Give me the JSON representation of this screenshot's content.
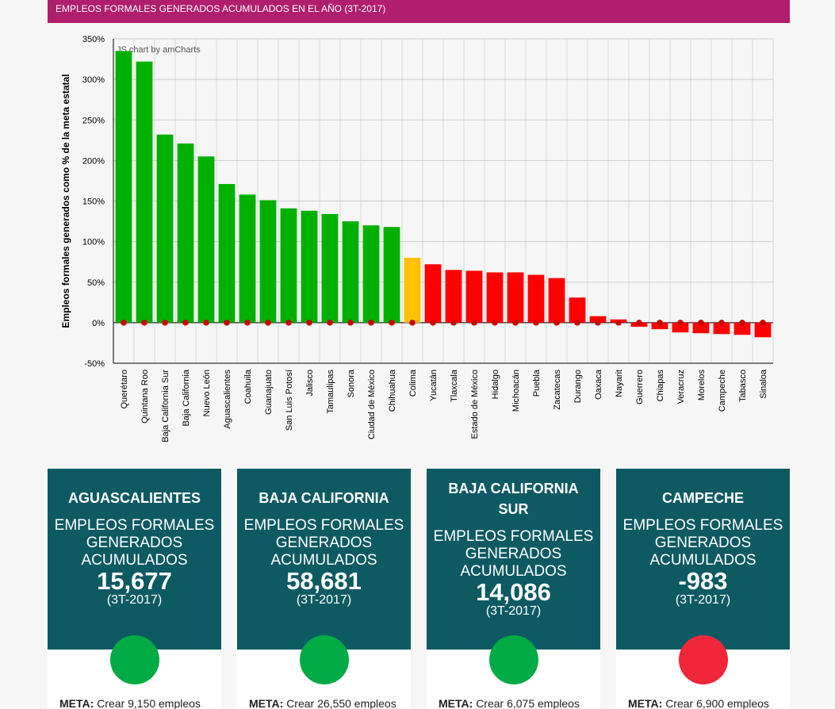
{
  "header": {
    "title": "EMPLEOS FORMALES GENERADOS ACUMULADOS EN EL AÑO (3T-2017)"
  },
  "chart_data": {
    "type": "bar",
    "title": "EMPLEOS FORMALES GENERADOS ACUMULADOS EN EL AÑO (3T-2017)",
    "ylabel": "Empleos formales generados como % de la meta estatal",
    "xlabel": "",
    "ylim": [
      -50,
      350
    ],
    "yticks": [
      -50,
      0,
      50,
      100,
      150,
      200,
      250,
      300,
      350
    ],
    "tick_suffix": "%",
    "watermark": "JS chart by amCharts",
    "grid": true,
    "categories": [
      "Querétaro",
      "Quintana Roo",
      "Baja California Sur",
      "Baja California",
      "Nuevo León",
      "Aguascalientes",
      "Coahuila",
      "Guanajuato",
      "San Luis Potosí",
      "Jalisco",
      "Tamaulipas",
      "Sonora",
      "Ciudad de México",
      "Chihuahua",
      "Colima",
      "Yucatán",
      "Tlaxcala",
      "Estado de México",
      "Hidalgo",
      "Michoacán",
      "Puebla",
      "Zacatecas",
      "Durango",
      "Oaxaca",
      "Nayarit",
      "Guerrero",
      "Chiapas",
      "Veracruz",
      "Morelos",
      "Campeche",
      "Tabasco",
      "Sinaloa"
    ],
    "values": [
      335,
      322,
      232,
      221,
      205,
      171,
      158,
      151,
      141,
      138,
      134,
      125,
      120,
      118,
      80,
      72,
      65,
      64,
      62,
      62,
      59,
      55,
      31,
      8,
      4,
      -5,
      -8,
      -12,
      -13,
      -14,
      -15,
      -18
    ],
    "colors": [
      "#00b000",
      "#00b000",
      "#00b000",
      "#00b000",
      "#00b000",
      "#00b000",
      "#00b000",
      "#00b000",
      "#00b000",
      "#00b000",
      "#00b000",
      "#00b000",
      "#00b000",
      "#00b000",
      "#ffc000",
      "#ff0000",
      "#ff0000",
      "#ff0000",
      "#ff0000",
      "#ff0000",
      "#ff0000",
      "#ff0000",
      "#ff0000",
      "#ff0000",
      "#ff0000",
      "#ff0000",
      "#ff0000",
      "#ff0000",
      "#ff0000",
      "#ff0000",
      "#ff0000",
      "#ff0000"
    ],
    "marker_value": 0,
    "marker_color": "#cc0000"
  },
  "cards": [
    {
      "name": "AGUASCALIENTES",
      "label": "EMPLEOS FORMALES GENERADOS ACUMULADOS",
      "value": "15,677",
      "period": "(3T-2017)",
      "status_color": "#00aa44",
      "meta_label": "META:",
      "meta_text": "Crear 9,150 empleos"
    },
    {
      "name": "BAJA CALIFORNIA",
      "label": "EMPLEOS FORMALES GENERADOS ACUMULADOS",
      "value": "58,681",
      "period": "(3T-2017)",
      "status_color": "#00aa44",
      "meta_label": "META:",
      "meta_text": "Crear 26,550 empleos"
    },
    {
      "name": "BAJA CALIFORNIA SUR",
      "label": "EMPLEOS FORMALES GENERADOS ACUMULADOS",
      "value": "14,086",
      "period": "(3T-2017)",
      "status_color": "#00aa44",
      "meta_label": "META:",
      "meta_text": "Crear 6,075 empleos"
    },
    {
      "name": "CAMPECHE",
      "label": "EMPLEOS FORMALES GENERADOS ACUMULADOS",
      "value": "-983",
      "period": "(3T-2017)",
      "status_color": "#f0263a",
      "meta_label": "META:",
      "meta_text": "Crear 6,900 empleos"
    }
  ]
}
